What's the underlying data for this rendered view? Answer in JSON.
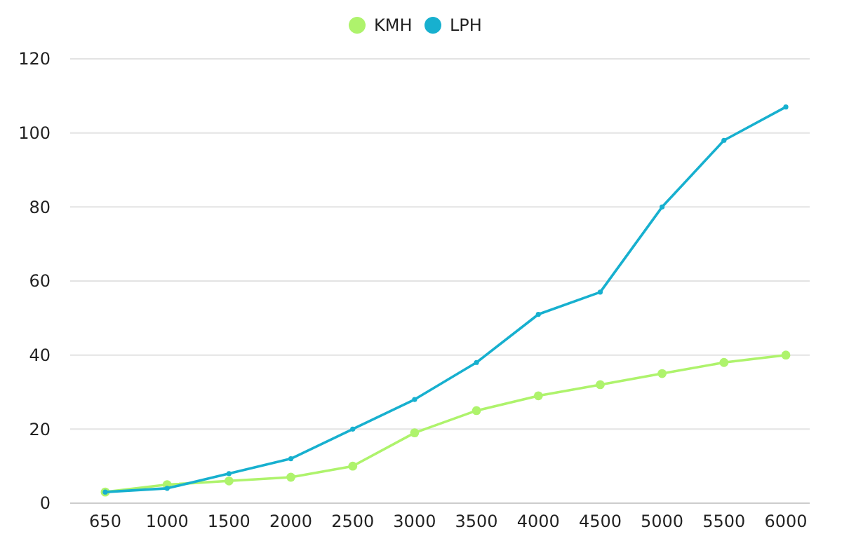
{
  "chart_data": {
    "type": "line",
    "categories": [
      "650",
      "1000",
      "1500",
      "2000",
      "2500",
      "3000",
      "3500",
      "4000",
      "4500",
      "5000",
      "5500",
      "6000"
    ],
    "series": [
      {
        "name": "KMH",
        "color": "#aef36c",
        "values": [
          3,
          5,
          6,
          7,
          10,
          19,
          25,
          29,
          32,
          35,
          38,
          40
        ]
      },
      {
        "name": "LPH",
        "color": "#17b0cf",
        "values": [
          3,
          4,
          8,
          12,
          20,
          28,
          38,
          51,
          57,
          80,
          98,
          107
        ]
      }
    ],
    "ylim": [
      0,
      120
    ],
    "yticks": [
      0,
      20,
      40,
      60,
      80,
      100,
      120
    ],
    "grid": "y",
    "legend": "top",
    "marker": "circle",
    "line_style": "solid"
  }
}
